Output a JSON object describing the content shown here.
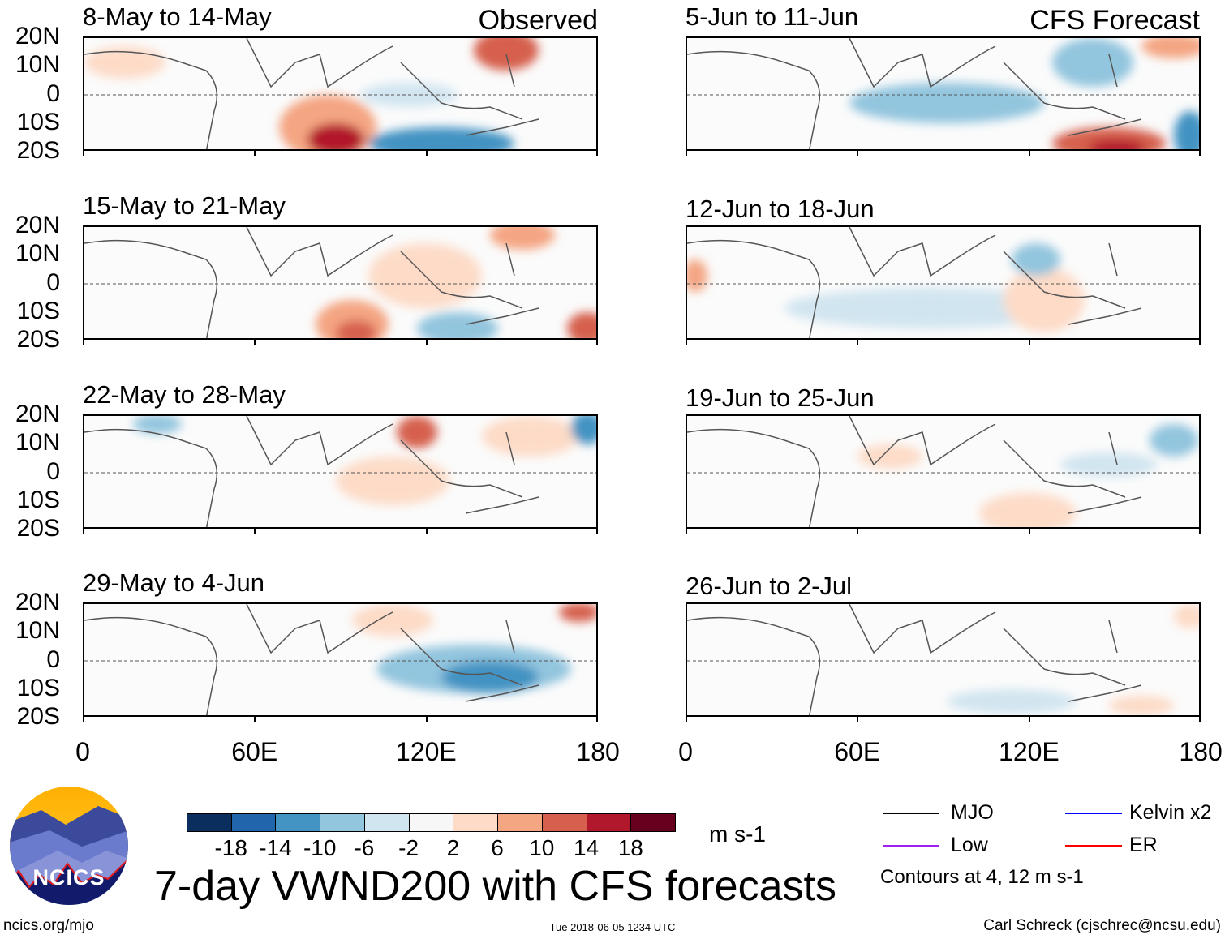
{
  "header": {
    "left_label": "Observed",
    "right_label": "CFS Forecast"
  },
  "observed_panels": [
    {
      "title": "8-May to 14-May"
    },
    {
      "title": "15-May to 21-May"
    },
    {
      "title": "22-May to 28-May"
    },
    {
      "title": "29-May to 4-Jun"
    }
  ],
  "forecast_panels": [
    {
      "title": "5-Jun to 11-Jun"
    },
    {
      "title": "12-Jun to 18-Jun"
    },
    {
      "title": "19-Jun to 25-Jun"
    },
    {
      "title": "26-Jun to 2-Jul"
    }
  ],
  "lat_labels": [
    "20N",
    "10N",
    "0",
    "10S",
    "20S"
  ],
  "lon_labels": [
    "0",
    "60E",
    "120E",
    "180"
  ],
  "colorbar": {
    "colors": [
      "#0a2f5e",
      "#2166ac",
      "#4393c3",
      "#92c5de",
      "#d1e5f0",
      "#f7f7f7",
      "#fddbc7",
      "#f4a582",
      "#d6604d",
      "#b2182b",
      "#67001f"
    ],
    "labels": [
      "-18",
      "-14",
      "-10",
      "-6",
      "-2",
      "2",
      "6",
      "10",
      "14",
      "18"
    ],
    "units": "m s-1"
  },
  "title": "7-day VWND200 with CFS forecasts",
  "legend": {
    "items": [
      {
        "label": "MJO",
        "color": "#000000"
      },
      {
        "label": "Kelvin x2",
        "color": "#0000ff"
      },
      {
        "label": "Low",
        "color": "#a020f0"
      },
      {
        "label": "ER",
        "color": "#ff0000"
      }
    ],
    "note": "Contours at 4, 12 m s-1"
  },
  "logo": {
    "text": "NCICS"
  },
  "footer": {
    "url": "ncics.org/mjo",
    "timestamp": "Tue 2018-06-05 1234 UTC",
    "credit": "Carl Schreck (cjschrec@ncsu.edu)"
  }
}
